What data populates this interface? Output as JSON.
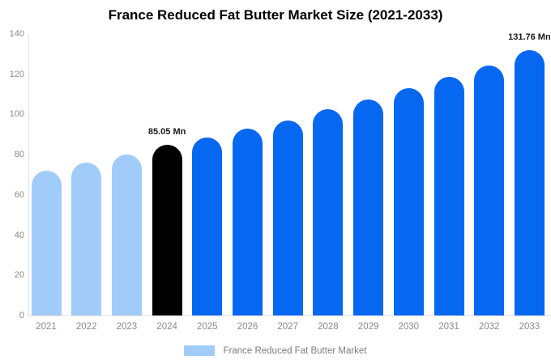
{
  "title": "France Reduced Fat Butter Market Size (2021-2033)",
  "legend": {
    "label": "France Reduced Fat Butter Market",
    "swatch_color": "#a1ccfa"
  },
  "colors": {
    "historical_bar": "#a1ccfa",
    "base_year_bar": "#000000",
    "forecast_bar": "#0667f1",
    "axis_line": "#e2e2e2",
    "tick_text": "#8a8a8a",
    "label_text": "#1a1a1a"
  },
  "chart_data": {
    "type": "bar",
    "title": "France Reduced Fat Butter Market Size (2021-2033)",
    "xlabel": "",
    "ylabel": "",
    "categories": [
      "2021",
      "2022",
      "2023",
      "2024",
      "2025",
      "2026",
      "2027",
      "2028",
      "2029",
      "2030",
      "2031",
      "2032",
      "2033"
    ],
    "values": [
      72,
      76,
      80,
      85.05,
      88.5,
      93,
      97,
      102.5,
      107.5,
      113,
      118.5,
      124.5,
      131.76
    ],
    "bar_colors": [
      "#a1ccfa",
      "#a1ccfa",
      "#a1ccfa",
      "#000000",
      "#0667f1",
      "#0667f1",
      "#0667f1",
      "#0667f1",
      "#0667f1",
      "#0667f1",
      "#0667f1",
      "#0667f1",
      "#0667f1"
    ],
    "annotations": [
      {
        "category": "2024",
        "text": "85.05 Mn"
      },
      {
        "category": "2033",
        "text": "131.76 Mn"
      }
    ],
    "ylim": [
      0,
      140
    ],
    "yticks": [
      0,
      20,
      40,
      60,
      80,
      100,
      120,
      140
    ],
    "grid": false,
    "legend_position": "bottom",
    "legend_entries": [
      "France Reduced Fat Butter Market"
    ]
  }
}
